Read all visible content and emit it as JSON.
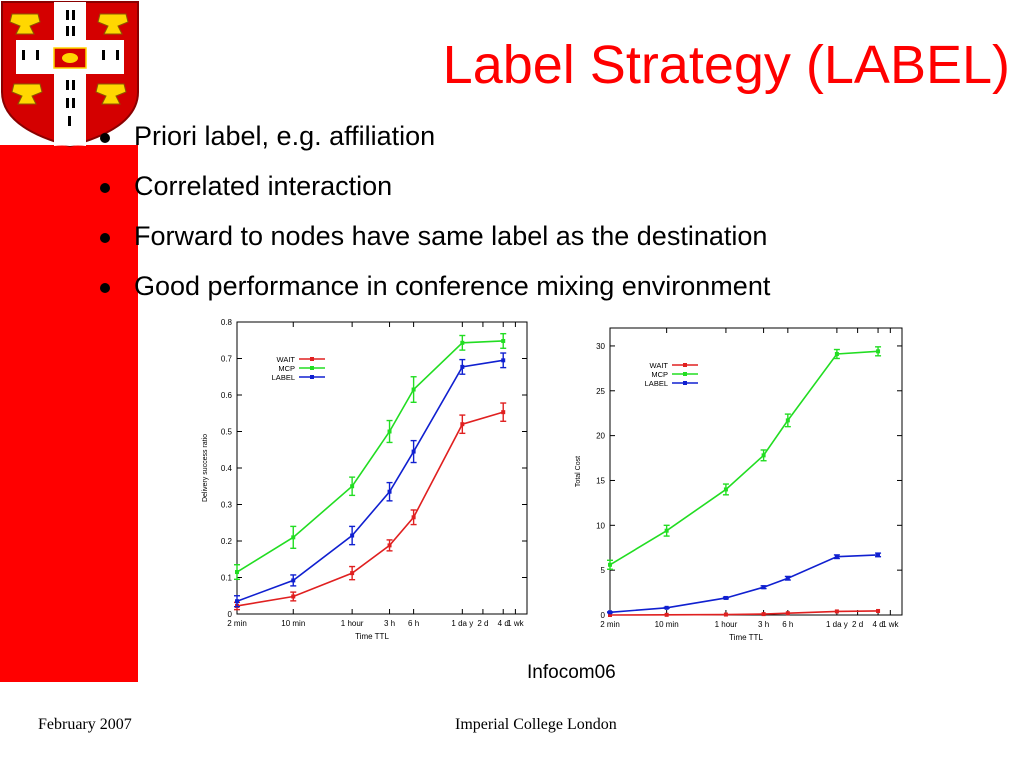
{
  "slide": {
    "title": "Label Strategy (LABEL)",
    "bullets": [
      "Priori label, e.g. affiliation",
      "Correlated interaction",
      "Forward to nodes have same label as the destination",
      "Good performance in conference mixing environment"
    ],
    "caption": "Infocom06",
    "footer_left": "February 2007",
    "footer_center": "Imperial College London"
  },
  "colors": {
    "accent": "#ff0000",
    "wait": "#e02020",
    "mcp": "#22dd22",
    "label": "#1020d0"
  },
  "chart_data": [
    {
      "type": "line",
      "xlabel": "Time TTL",
      "ylabel": "Delivery success ratio",
      "ylim": [
        0,
        0.8
      ],
      "yticks": [
        0,
        0.1,
        0.2,
        0.3,
        0.4,
        0.5,
        0.6,
        0.7,
        0.8
      ],
      "ytick_labels": [
        "0",
        "0.1",
        "0.2",
        "0.3",
        "0.4",
        "0.5",
        "0.6",
        "0.7",
        "0.8"
      ],
      "xtick_labels": [
        "2 min",
        "10 min",
        "1 hour",
        "3 h",
        "6 h",
        "1 da y",
        "2 d",
        "4 d",
        "1 wk"
      ],
      "legend_position": "top-left",
      "grid": false,
      "series": [
        {
          "name": "WAIT",
          "color": "#e02020",
          "values": [
            0.022,
            0.048,
            0.112,
            0.188,
            0.265,
            0.52,
            0.553
          ],
          "errors": [
            0.01,
            0.012,
            0.018,
            0.015,
            0.02,
            0.025,
            0.025
          ]
        },
        {
          "name": "MCP",
          "color": "#22dd22",
          "values": [
            0.115,
            0.21,
            0.35,
            0.5,
            0.615,
            0.743,
            0.748
          ],
          "errors": [
            0.02,
            0.03,
            0.025,
            0.03,
            0.035,
            0.02,
            0.02
          ]
        },
        {
          "name": "LABEL",
          "color": "#1020d0",
          "values": [
            0.035,
            0.092,
            0.215,
            0.335,
            0.445,
            0.677,
            0.695
          ],
          "errors": [
            0.015,
            0.015,
            0.025,
            0.025,
            0.03,
            0.02,
            0.02
          ]
        }
      ]
    },
    {
      "type": "line",
      "xlabel": "Time TTL",
      "ylabel": "Total Cost",
      "ylim": [
        0,
        32
      ],
      "yticks": [
        0,
        5,
        10,
        15,
        20,
        25,
        30
      ],
      "ytick_labels": [
        "0",
        "5",
        "10",
        "15",
        "20",
        "25",
        "30"
      ],
      "xtick_labels": [
        "2 min",
        "10 min",
        "1 hour",
        "3 h",
        "6 h",
        "1 da y",
        "2 d",
        "4 d",
        "1 wk"
      ],
      "legend_position": "top-left",
      "grid": false,
      "series": [
        {
          "name": "WAIT",
          "color": "#e02020",
          "values": [
            0.0,
            0.02,
            0.05,
            0.1,
            0.2,
            0.4,
            0.45
          ],
          "errors": [
            0,
            0,
            0,
            0,
            0,
            0,
            0
          ]
        },
        {
          "name": "MCP",
          "color": "#22dd22",
          "values": [
            5.6,
            9.4,
            14.0,
            17.8,
            21.7,
            29.1,
            29.4
          ],
          "errors": [
            0.5,
            0.6,
            0.6,
            0.6,
            0.7,
            0.5,
            0.5
          ]
        },
        {
          "name": "LABEL",
          "color": "#1020d0",
          "values": [
            0.3,
            0.8,
            1.9,
            3.1,
            4.1,
            6.5,
            6.7
          ],
          "errors": [
            0.05,
            0.05,
            0.1,
            0.15,
            0.2,
            0.2,
            0.2
          ]
        }
      ]
    }
  ]
}
